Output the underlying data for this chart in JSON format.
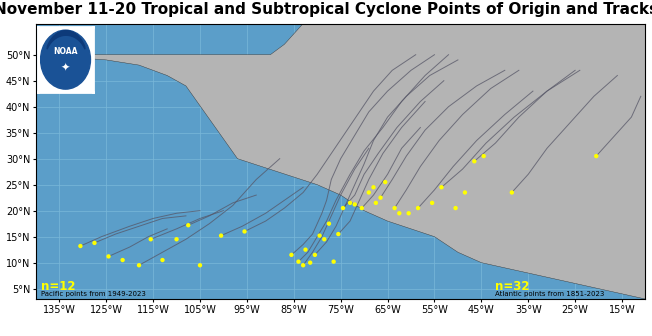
{
  "title": "November 11-20 Tropical and Subtropical Cyclone Points of Origin and Tracks",
  "ocean_color": "#5b9ec9",
  "land_color": "#b4b4b4",
  "lake_color": "#5b9ec9",
  "grid_color": "#7ab8d9",
  "track_color": "#555566",
  "point_color": "#ffff00",
  "pacific_label": "n=12",
  "atlantic_label": "n=32",
  "pacific_source": "Pacific points from 1949-2023",
  "atlantic_source": "Atlantic points from 1851-2023",
  "xlim": [
    -140,
    -10
  ],
  "ylim": [
    3,
    56
  ],
  "xticks": [
    -135,
    -125,
    -115,
    -105,
    -95,
    -85,
    -75,
    -65,
    -55,
    -45,
    -35,
    -25,
    -15
  ],
  "yticks": [
    5,
    10,
    15,
    20,
    25,
    30,
    35,
    40,
    45,
    50
  ],
  "xtick_labels": [
    "135°W",
    "125°W",
    "115°W",
    "105°W",
    "95°W",
    "85°W",
    "75°W",
    "65°W",
    "55°W",
    "45°W",
    "35°W",
    "25°W",
    "15°W"
  ],
  "ytick_labels": [
    "5°N",
    "10°N",
    "15°N",
    "20°N",
    "25°N",
    "30°N",
    "35°N",
    "40°N",
    "45°N",
    "50°N"
  ],
  "pacific_points": [
    [
      -130.5,
      13.2
    ],
    [
      -127.5,
      13.8
    ],
    [
      -124.5,
      11.2
    ],
    [
      -121.5,
      10.5
    ],
    [
      -118.0,
      9.5
    ],
    [
      -115.5,
      14.5
    ],
    [
      -113.0,
      10.5
    ],
    [
      -110.0,
      14.5
    ],
    [
      -107.5,
      17.2
    ],
    [
      -105.0,
      9.5
    ],
    [
      -100.5,
      15.2
    ],
    [
      -95.5,
      16.0
    ]
  ],
  "atlantic_points": [
    [
      -85.5,
      11.5
    ],
    [
      -84.0,
      10.2
    ],
    [
      -83.0,
      9.5
    ],
    [
      -82.5,
      12.5
    ],
    [
      -81.5,
      10.0
    ],
    [
      -80.5,
      11.5
    ],
    [
      -79.5,
      15.2
    ],
    [
      -78.5,
      14.5
    ],
    [
      -77.5,
      17.5
    ],
    [
      -76.5,
      10.2
    ],
    [
      -75.5,
      15.5
    ],
    [
      -74.5,
      20.5
    ],
    [
      -73.0,
      21.5
    ],
    [
      -72.0,
      21.2
    ],
    [
      -70.5,
      20.5
    ],
    [
      -69.0,
      23.5
    ],
    [
      -68.0,
      24.5
    ],
    [
      -67.5,
      21.5
    ],
    [
      -66.5,
      22.5
    ],
    [
      -65.5,
      25.5
    ],
    [
      -63.5,
      20.5
    ],
    [
      -62.5,
      19.5
    ],
    [
      -60.5,
      19.5
    ],
    [
      -58.5,
      20.5
    ],
    [
      -55.5,
      21.5
    ],
    [
      -53.5,
      24.5
    ],
    [
      -50.5,
      20.5
    ],
    [
      -48.5,
      23.5
    ],
    [
      -46.5,
      29.5
    ],
    [
      -44.5,
      30.5
    ],
    [
      -38.5,
      23.5
    ],
    [
      -20.5,
      30.5
    ]
  ],
  "tracks": [
    [
      [
        -130.5,
        13.2
      ],
      [
        -126,
        15
      ],
      [
        -120,
        17
      ],
      [
        -115,
        18.5
      ],
      [
        -110,
        19.5
      ],
      [
        -105,
        20
      ]
    ],
    [
      [
        -127.5,
        13.8
      ],
      [
        -123,
        15.5
      ],
      [
        -118,
        17
      ],
      [
        -113,
        18.5
      ],
      [
        -108,
        19
      ]
    ],
    [
      [
        -124.5,
        11.2
      ],
      [
        -120,
        13
      ],
      [
        -116,
        15
      ],
      [
        -112,
        16.5
      ]
    ],
    [
      [
        -118.0,
        9.5
      ],
      [
        -113,
        12
      ],
      [
        -108,
        14.5
      ],
      [
        -103,
        17.5
      ],
      [
        -98,
        21
      ],
      [
        -93,
        26
      ],
      [
        -88,
        30
      ]
    ],
    [
      [
        -115.5,
        14.5
      ],
      [
        -110,
        16.5
      ],
      [
        -105,
        18.5
      ],
      [
        -100,
        20
      ]
    ],
    [
      [
        -107.5,
        17.2
      ],
      [
        -103,
        19
      ],
      [
        -98,
        21.5
      ],
      [
        -93,
        23
      ]
    ],
    [
      [
        -100.5,
        15.2
      ],
      [
        -96,
        17
      ],
      [
        -91,
        19.5
      ],
      [
        -87,
        22
      ],
      [
        -83,
        24.5
      ]
    ],
    [
      [
        -95.5,
        16.0
      ],
      [
        -91,
        18
      ],
      [
        -87,
        20.5
      ],
      [
        -83,
        23.5
      ],
      [
        -80,
        27
      ],
      [
        -77,
        31
      ],
      [
        -74,
        35
      ],
      [
        -71,
        39
      ],
      [
        -68,
        43
      ],
      [
        -64,
        47
      ],
      [
        -59,
        50
      ]
    ],
    [
      [
        -85.5,
        11.5
      ],
      [
        -83,
        13.5
      ],
      [
        -81,
        15.5
      ],
      [
        -80,
        17.5
      ],
      [
        -79,
        19.5
      ],
      [
        -78,
        22
      ],
      [
        -77,
        26
      ],
      [
        -75,
        30
      ],
      [
        -72,
        34.5
      ],
      [
        -69,
        39
      ],
      [
        -65,
        43
      ],
      [
        -60,
        47
      ],
      [
        -55,
        50
      ]
    ],
    [
      [
        -84.0,
        10.2
      ],
      [
        -82,
        12
      ],
      [
        -80,
        15
      ],
      [
        -78,
        18
      ],
      [
        -76,
        22
      ],
      [
        -73,
        27
      ],
      [
        -70,
        31.5
      ],
      [
        -66,
        36
      ],
      [
        -62,
        41
      ],
      [
        -57,
        46
      ],
      [
        -52,
        50
      ]
    ],
    [
      [
        -83.0,
        9.5
      ],
      [
        -81,
        12
      ],
      [
        -79,
        15
      ],
      [
        -77,
        19
      ],
      [
        -75,
        23
      ],
      [
        -72,
        28
      ],
      [
        -69,
        32
      ]
    ],
    [
      [
        -80.5,
        11.5
      ],
      [
        -78,
        14
      ],
      [
        -76,
        17
      ],
      [
        -74,
        21
      ],
      [
        -72,
        25
      ],
      [
        -70,
        29
      ],
      [
        -68,
        33.5
      ],
      [
        -65,
        38
      ],
      [
        -61,
        42
      ],
      [
        -56,
        46
      ],
      [
        -50,
        49
      ]
    ],
    [
      [
        -75.5,
        15.5
      ],
      [
        -73,
        18
      ],
      [
        -71,
        22
      ],
      [
        -69,
        26
      ],
      [
        -66,
        31
      ],
      [
        -62,
        36
      ],
      [
        -57,
        41
      ]
    ],
    [
      [
        -74.5,
        20.5
      ],
      [
        -72,
        23
      ],
      [
        -70,
        27
      ],
      [
        -67,
        31
      ],
      [
        -63,
        36
      ],
      [
        -58,
        41
      ],
      [
        -53,
        45
      ]
    ],
    [
      [
        -70.5,
        20.5
      ],
      [
        -68,
        23
      ],
      [
        -65,
        27
      ],
      [
        -62,
        32
      ],
      [
        -58,
        36
      ]
    ],
    [
      [
        -66.5,
        22.5
      ],
      [
        -64,
        26
      ],
      [
        -61,
        30.5
      ],
      [
        -57,
        35.5
      ],
      [
        -52,
        40
      ],
      [
        -46,
        44
      ],
      [
        -40,
        47
      ]
    ],
    [
      [
        -63.5,
        20.5
      ],
      [
        -61,
        24
      ],
      [
        -58,
        28.5
      ],
      [
        -54,
        33.5
      ],
      [
        -49,
        38.5
      ],
      [
        -43,
        43.5
      ],
      [
        -37,
        47
      ]
    ],
    [
      [
        -58.5,
        20.5
      ],
      [
        -55,
        24
      ],
      [
        -51,
        28.5
      ],
      [
        -46,
        33.5
      ],
      [
        -40,
        38.5
      ],
      [
        -34,
        43
      ]
    ],
    [
      [
        -53.5,
        24.5
      ],
      [
        -49,
        28
      ],
      [
        -44,
        33
      ],
      [
        -38,
        38
      ],
      [
        -31,
        43
      ],
      [
        -24,
        47
      ]
    ],
    [
      [
        -46.5,
        29.5
      ],
      [
        -42,
        33
      ],
      [
        -37,
        38
      ],
      [
        -31,
        43
      ],
      [
        -25,
        47
      ]
    ],
    [
      [
        -38.5,
        23.5
      ],
      [
        -35,
        27
      ],
      [
        -31,
        32
      ],
      [
        -26,
        37
      ],
      [
        -21,
        42
      ],
      [
        -16,
        46
      ]
    ],
    [
      [
        -20.5,
        30.5
      ],
      [
        -17,
        34
      ],
      [
        -13,
        38
      ],
      [
        -11,
        42
      ]
    ]
  ],
  "noaa_logo_bg": "#1a5296",
  "noaa_logo_circle": "#2266cc",
  "title_fontsize": 11,
  "label_fontsize": 7,
  "tick_fontsize": 7
}
